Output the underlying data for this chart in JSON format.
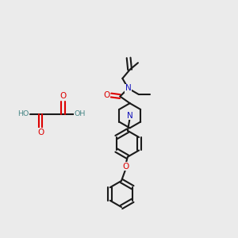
{
  "bg_color": "#ebebeb",
  "bond_color": "#1a1a1a",
  "O_color": "#dd0000",
  "N_color": "#1111bb",
  "H_color": "#4a8888",
  "lw": 1.5,
  "fs": 7.5,
  "xlim": [
    0,
    10
  ],
  "ylim": [
    0,
    10
  ]
}
